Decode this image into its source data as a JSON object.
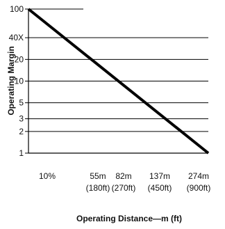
{
  "chart_data": {
    "type": "line",
    "xlabel": "Operating Distance—m (ft)",
    "ylabel": "Operating Margin",
    "x_scale": "linear",
    "y_scale": "log",
    "ylim": [
      1,
      100
    ],
    "y_ticks": [
      {
        "value": 100,
        "label": "100"
      },
      {
        "value": 40,
        "label": "40X"
      },
      {
        "value": 20,
        "label": "20"
      },
      {
        "value": 10,
        "label": "10"
      },
      {
        "value": 5,
        "label": "5"
      },
      {
        "value": 3,
        "label": "3"
      },
      {
        "value": 2,
        "label": "2"
      },
      {
        "value": 1,
        "label": "1"
      }
    ],
    "x_ticks": [
      {
        "label": "10%",
        "label2": ""
      },
      {
        "label": "55m",
        "label2": "(180ft)"
      },
      {
        "label": "82m",
        "label2": "(270ft)"
      },
      {
        "label": "137m",
        "label2": "(450ft)"
      },
      {
        "label": "274m",
        "label2": "(900ft)"
      }
    ],
    "grid": "horizontal",
    "series": [
      {
        "x": [
          0,
          274
        ],
        "y": [
          100,
          1
        ]
      }
    ]
  }
}
